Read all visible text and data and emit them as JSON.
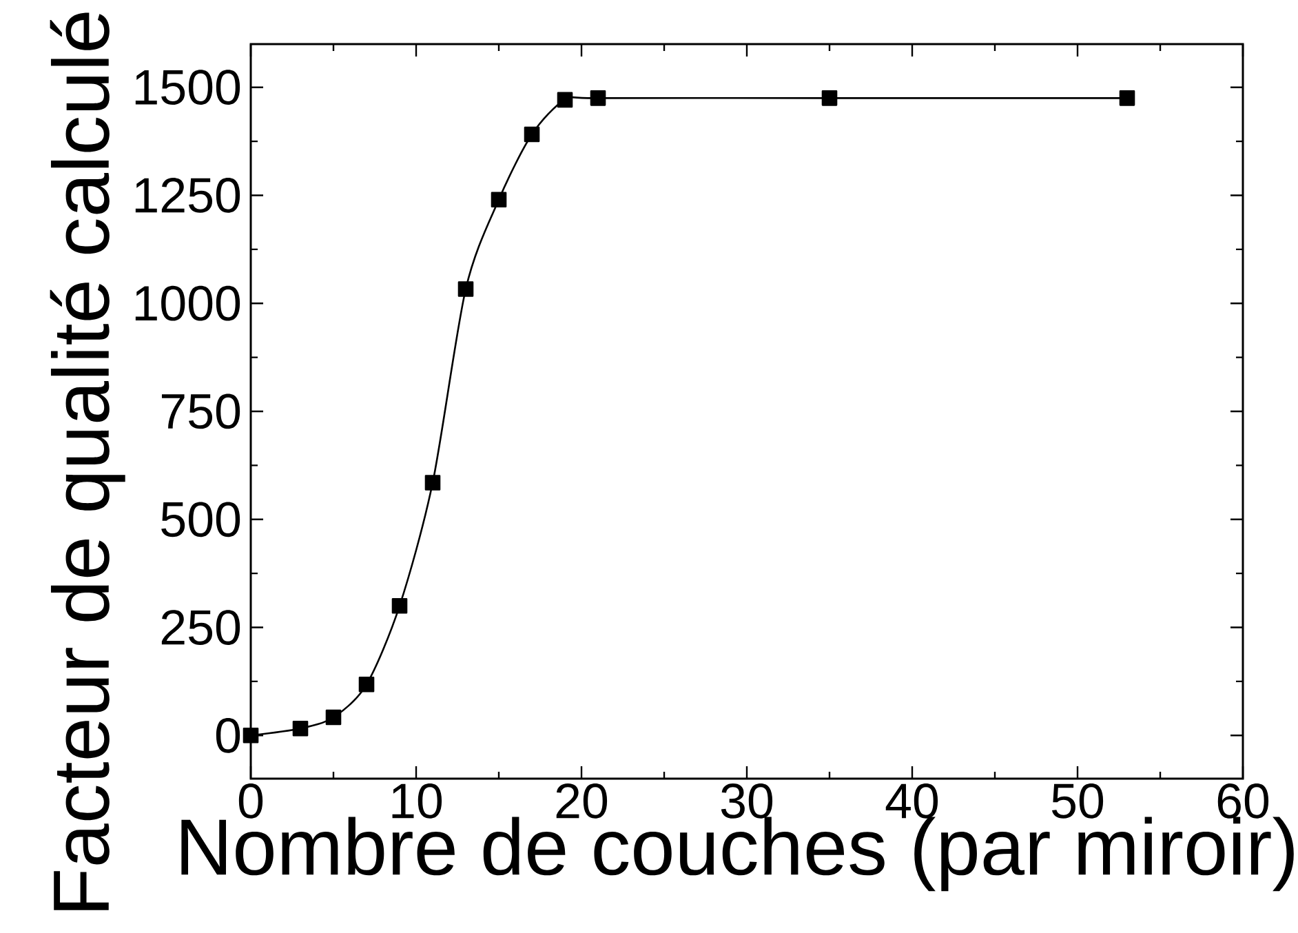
{
  "chart_data": {
    "type": "line",
    "xlabel": "Nombre de couches (par miroir)",
    "ylabel": "Facteur de qualité calculé",
    "x": [
      0,
      3,
      5,
      7,
      9,
      11,
      13,
      15,
      17,
      19,
      21,
      35,
      53
    ],
    "values": [
      0,
      16,
      42,
      118,
      300,
      585,
      1033,
      1240,
      1391,
      1471,
      1475,
      1475,
      1475
    ],
    "color": "#000000",
    "marker": "square",
    "line_style": "solid",
    "grid": false,
    "xlim": [
      0,
      60
    ],
    "xticks": [
      0,
      10,
      20,
      30,
      40,
      50,
      60
    ],
    "ylim": [
      -100,
      1600
    ],
    "yticks": [
      0,
      250,
      500,
      750,
      1000,
      1250,
      1500
    ]
  }
}
